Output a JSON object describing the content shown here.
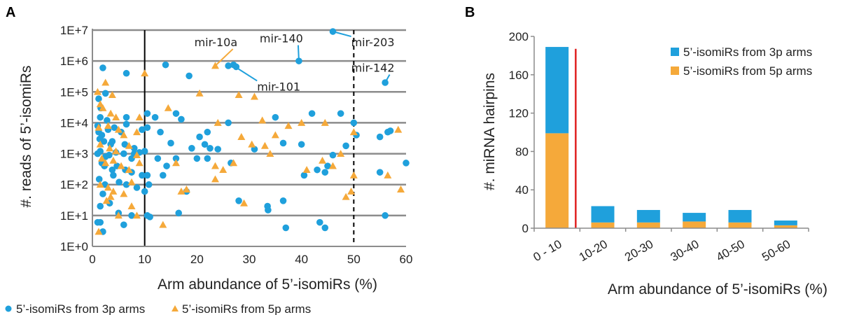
{
  "chart_data": [
    {
      "panel": "A",
      "type": "scatter",
      "title": "",
      "xlabel": "Arm abundance of 5’-isomiRs (%)",
      "ylabel": "#. reads of 5’-isomiRs",
      "xlim": [
        0,
        60
      ],
      "xticks": [
        "0",
        "10",
        "20",
        "30",
        "40",
        "50",
        "60"
      ],
      "yscale": "log",
      "ylim": [
        1,
        10000000
      ],
      "yticks": [
        "1E+0",
        "1E+1",
        "1E+2",
        "1E+3",
        "1E+4",
        "1E+5",
        "1E+6",
        "1E+7"
      ],
      "grid": "horizontal",
      "legend_position": "bottom",
      "vertical_lines": [
        {
          "x": 10,
          "style": "solid"
        },
        {
          "x": 50,
          "style": "dashed"
        }
      ],
      "annotations": [
        {
          "text": "mir-10a",
          "point": [
            23.5,
            700000
          ],
          "label_at": [
            19.5,
            3000000
          ],
          "color": "#F5A93A"
        },
        {
          "text": "mir-140",
          "point": [
            39.5,
            1000000
          ],
          "label_at": [
            32,
            4000000
          ],
          "color": "#1FA0DC"
        },
        {
          "text": "mir-101",
          "point": [
            27,
            700000
          ],
          "label_at": [
            31.5,
            110000
          ],
          "color": "#1FA0DC"
        },
        {
          "text": "mir-203",
          "point": [
            46,
            9000000
          ],
          "label_at": [
            49.5,
            3000000
          ],
          "color": "#1FA0DC"
        },
        {
          "text": "mir-142",
          "point": [
            56,
            200000
          ],
          "label_at": [
            49.5,
            450000
          ],
          "color": "#1FA0DC"
        }
      ],
      "series": [
        {
          "name": "5’-isomiRs from 3p arms",
          "marker": "circle",
          "color": "#1FA0DC",
          "points": [
            [
              2,
              600000
            ],
            [
              6.5,
              400000
            ],
            [
              14,
              750000
            ],
            [
              18.5,
              330000
            ],
            [
              26,
              700000
            ],
            [
              27,
              750000
            ],
            [
              27.5,
              650000
            ],
            [
              39.5,
              1000000
            ],
            [
              46,
              9000000
            ],
            [
              56,
              200000
            ],
            [
              1.2,
              60000
            ],
            [
              1.6,
              30000
            ],
            [
              2.5,
              90000
            ],
            [
              1.5,
              15000
            ],
            [
              2.8,
              12000
            ],
            [
              6.5,
              15000
            ],
            [
              10.5,
              20000
            ],
            [
              12,
              15000
            ],
            [
              16,
              20000
            ],
            [
              17,
              13000
            ],
            [
              26,
              10000
            ],
            [
              35,
              15000
            ],
            [
              42,
              20000
            ],
            [
              47.5,
              20000
            ],
            [
              50,
              10000
            ],
            [
              50.5,
              4000
            ],
            [
              55,
              3500
            ],
            [
              56.5,
              5000
            ],
            [
              57,
              5500
            ],
            [
              1,
              8000
            ],
            [
              1.2,
              5000
            ],
            [
              1.8,
              4000
            ],
            [
              3,
              6000
            ],
            [
              4.2,
              7000
            ],
            [
              5.5,
              5000
            ],
            [
              6.5,
              9000
            ],
            [
              9.5,
              6000
            ],
            [
              10.5,
              7000
            ],
            [
              13,
              5000
            ],
            [
              20.5,
              3500
            ],
            [
              22,
              5000
            ],
            [
              1.4,
              3000
            ],
            [
              2.2,
              2500
            ],
            [
              3.5,
              2000
            ],
            [
              3.8,
              2500
            ],
            [
              6.2,
              2000
            ],
            [
              8,
              1500
            ],
            [
              10,
              1200
            ],
            [
              15,
              2200
            ],
            [
              19,
              1500
            ],
            [
              21.5,
              2000
            ],
            [
              22.5,
              1500
            ],
            [
              24,
              1400
            ],
            [
              36.5,
              2200
            ],
            [
              40,
              2000
            ],
            [
              48.5,
              1800
            ],
            [
              1,
              1000
            ],
            [
              1.5,
              1200
            ],
            [
              2.5,
              800
            ],
            [
              3.2,
              900
            ],
            [
              4.5,
              1100
            ],
            [
              6,
              1000
            ],
            [
              7.5,
              700
            ],
            [
              8,
              1000
            ],
            [
              9,
              1100
            ],
            [
              12.5,
              700
            ],
            [
              16,
              700
            ],
            [
              20,
              700
            ],
            [
              22,
              700
            ],
            [
              31,
              1400
            ],
            [
              46,
              900
            ],
            [
              1.8,
              500
            ],
            [
              2.3,
              400
            ],
            [
              3.8,
              300
            ],
            [
              4.7,
              400
            ],
            [
              6.3,
              300
            ],
            [
              7.5,
              250
            ],
            [
              9.5,
              200
            ],
            [
              10.5,
              200
            ],
            [
              13.5,
              200
            ],
            [
              14.2,
              400
            ],
            [
              26.5,
              500
            ],
            [
              40.5,
              200
            ],
            [
              43,
              300
            ],
            [
              44.5,
              250
            ],
            [
              45,
              400
            ],
            [
              55,
              250
            ],
            [
              60,
              500
            ],
            [
              1.3,
              150
            ],
            [
              2.4,
              100
            ],
            [
              4,
              200
            ],
            [
              5.1,
              120
            ],
            [
              6.5,
              100
            ],
            [
              8.5,
              80
            ],
            [
              10,
              60
            ],
            [
              10.8,
              100
            ],
            [
              18,
              60
            ],
            [
              2,
              50
            ],
            [
              1.5,
              20
            ],
            [
              3.3,
              25
            ],
            [
              5,
              12
            ],
            [
              7.5,
              10
            ],
            [
              10.5,
              10
            ],
            [
              11,
              9
            ],
            [
              16.5,
              12
            ],
            [
              28,
              30
            ],
            [
              33.5,
              20
            ],
            [
              33.6,
              15
            ],
            [
              36.5,
              30
            ],
            [
              1,
              6
            ],
            [
              1.5,
              6
            ],
            [
              2,
              3
            ],
            [
              6,
              5
            ],
            [
              37,
              4
            ],
            [
              43.5,
              6
            ],
            [
              44.5,
              4
            ],
            [
              56,
              10
            ]
          ]
        },
        {
          "name": "5’-isomiRs from 5p arms",
          "marker": "triangle",
          "color": "#F5A93A",
          "points": [
            [
              10,
              400000
            ],
            [
              23.5,
              700000
            ],
            [
              1,
              100000
            ],
            [
              2.5,
              200000
            ],
            [
              3.8,
              80000
            ],
            [
              20.5,
              90000
            ],
            [
              28,
              80000
            ],
            [
              31,
              70000
            ],
            [
              1.5,
              40000
            ],
            [
              2,
              30000
            ],
            [
              3.5,
              20000
            ],
            [
              4.5,
              15000
            ],
            [
              9,
              15000
            ],
            [
              14.5,
              30000
            ],
            [
              24,
              10000
            ],
            [
              32.5,
              12000
            ],
            [
              44.5,
              10000
            ],
            [
              50,
              5000
            ],
            [
              58.5,
              6000
            ],
            [
              1.2,
              7000
            ],
            [
              3,
              8000
            ],
            [
              5,
              6000
            ],
            [
              6,
              4000
            ],
            [
              8.5,
              5000
            ],
            [
              37.5,
              8000
            ],
            [
              40,
              10000
            ],
            [
              28.5,
              3500
            ],
            [
              35,
              4000
            ],
            [
              1.5,
              2000
            ],
            [
              3.3,
              1500
            ],
            [
              4.5,
              1200
            ],
            [
              7,
              1800
            ],
            [
              8.5,
              900
            ],
            [
              30.5,
              2000
            ],
            [
              33,
              1800
            ],
            [
              34,
              1000
            ],
            [
              44,
              600
            ],
            [
              47.5,
              1000
            ],
            [
              1.8,
              700
            ],
            [
              2.5,
              500
            ],
            [
              4,
              600
            ],
            [
              5.5,
              400
            ],
            [
              7,
              300
            ],
            [
              9,
              500
            ],
            [
              16,
              500
            ],
            [
              23.5,
              400
            ],
            [
              25,
              300
            ],
            [
              27,
              500
            ],
            [
              41,
              300
            ],
            [
              46,
              400
            ],
            [
              50,
              200
            ],
            [
              56.5,
              200
            ],
            [
              1.5,
              100
            ],
            [
              3,
              80
            ],
            [
              4,
              60
            ],
            [
              6,
              50
            ],
            [
              7.5,
              120
            ],
            [
              23.5,
              150
            ],
            [
              17,
              60
            ],
            [
              18,
              70
            ],
            [
              49.5,
              60
            ],
            [
              48.5,
              40
            ],
            [
              59,
              70
            ],
            [
              2.7,
              30
            ],
            [
              3.5,
              40
            ],
            [
              5,
              10
            ],
            [
              7.5,
              20
            ],
            [
              8.5,
              10
            ],
            [
              13.5,
              5
            ],
            [
              29,
              25
            ],
            [
              1.2,
              3
            ]
          ]
        }
      ]
    },
    {
      "panel": "B",
      "type": "bar",
      "stacked": true,
      "title": "",
      "xlabel": "Arm abundance of 5’-isomiRs (%)",
      "ylabel": "#. miRNA hairpins",
      "categories": [
        "0 - 10",
        "10-20",
        "20-30",
        "30-40",
        "40-50",
        "50-60"
      ],
      "ylim": [
        0,
        200
      ],
      "yticks": [
        "0",
        "40",
        "80",
        "120",
        "160",
        "200"
      ],
      "grid": false,
      "legend_position": "top-right",
      "vertical_lines": [
        {
          "between": [
            "0 - 10",
            "10-20"
          ],
          "color": "#E02020"
        }
      ],
      "series": [
        {
          "name": "5’-isomiRs from 5p arms",
          "color": "#F5A93A",
          "values": [
            99,
            6,
            6,
            7,
            6,
            3
          ]
        },
        {
          "name": "5’-isomiRs from 3p arms",
          "color": "#1FA0DC",
          "values": [
            90,
            17,
            13,
            9,
            13,
            5
          ]
        }
      ]
    }
  ],
  "panel_labels": {
    "a": "A",
    "b": "B"
  },
  "legend_a": {
    "item_3p": "5’-isomiRs from 3p arms",
    "item_5p": "5’-isomiRs from 5p arms"
  },
  "legend_b": {
    "item_3p": "5’-isomiRs from 3p arms",
    "item_5p": "5’-isomiRs from 5p arms"
  }
}
